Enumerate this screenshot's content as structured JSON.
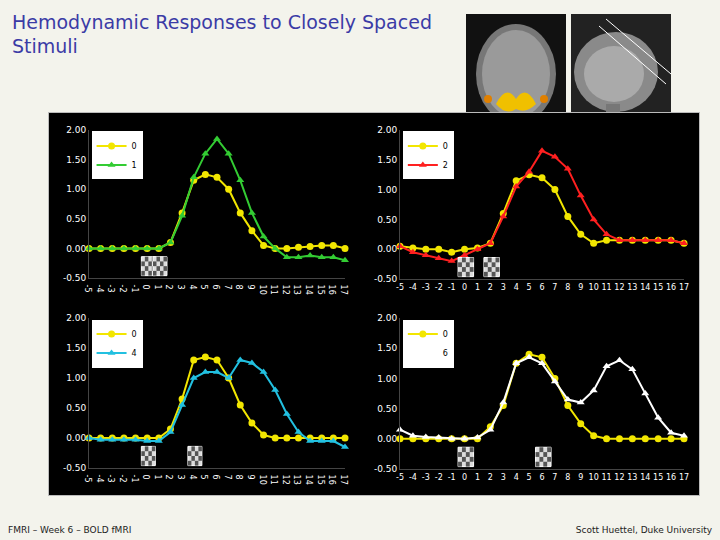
{
  "slide": {
    "title": "Hemodynamic Responses to Closely Spaced Stimuli",
    "footer_left": "FMRI – Week 6 – BOLD fMRI",
    "footer_right": "Scott Huettel, Duke University"
  },
  "chart_data": [
    {
      "type": "line",
      "legend": "upper left",
      "grid": false,
      "x": [
        -5,
        -4,
        -3,
        -2,
        -1,
        0,
        1,
        2,
        3,
        4,
        5,
        6,
        7,
        8,
        9,
        10,
        11,
        12,
        13,
        14,
        15,
        16,
        17
      ],
      "xlim": [
        -5,
        17
      ],
      "xticks": [
        -5,
        -4,
        -3,
        -2,
        -1,
        0,
        1,
        2,
        3,
        4,
        5,
        6,
        7,
        8,
        9,
        10,
        11,
        12,
        13,
        14,
        15,
        16,
        17
      ],
      "ylim": [
        -0.5,
        2.0
      ],
      "yticks": [
        {
          "value": -0.5,
          "label": "-0.50"
        },
        {
          "value": 0,
          "label": "0.00"
        },
        {
          "value": 0.5,
          "label": "0.50"
        },
        {
          "value": 1.0,
          "label": "1.00"
        },
        {
          "value": 1.5,
          "label": "1.50"
        },
        {
          "value": 2.0,
          "label": "2.00"
        }
      ],
      "stimulus_onsets": [
        0,
        1
      ],
      "series": [
        {
          "name": "0",
          "color": "#f2e600",
          "marker": "circle",
          "values": [
            0,
            0,
            0,
            0,
            0,
            0,
            0,
            0.1,
            0.6,
            1.15,
            1.25,
            1.2,
            1.0,
            0.6,
            0.3,
            0.05,
            0,
            0,
            0.02,
            0.03,
            0.05,
            0.05,
            0
          ]
        },
        {
          "name": "1",
          "color": "#33cc33",
          "marker": "triangle",
          "values": [
            0,
            0,
            0,
            0,
            0,
            0,
            0,
            0.1,
            0.55,
            1.2,
            1.6,
            1.85,
            1.6,
            1.15,
            0.6,
            0.2,
            0,
            -0.15,
            -0.15,
            -0.12,
            -0.15,
            -0.15,
            -0.2
          ]
        }
      ]
    },
    {
      "type": "line",
      "legend": "upper left",
      "grid": false,
      "x": [
        -5,
        -4,
        -3,
        -2,
        -1,
        0,
        1,
        2,
        3,
        4,
        5,
        6,
        7,
        8,
        9,
        10,
        11,
        12,
        13,
        14,
        15,
        16,
        17
      ],
      "xlim": [
        -5,
        17
      ],
      "xticks": [
        -5,
        -4,
        -3,
        -2,
        -1,
        0,
        1,
        2,
        3,
        4,
        5,
        6,
        7,
        8,
        9,
        10,
        11,
        12,
        13,
        14,
        15,
        16,
        17
      ],
      "ylim": [
        -0.5,
        2.0
      ],
      "yticks": [
        {
          "value": -0.5,
          "label": "-0.50"
        },
        {
          "value": 0,
          "label": "0.00"
        },
        {
          "value": 0.5,
          "label": "0.50"
        },
        {
          "value": 1.0,
          "label": "1.00"
        },
        {
          "value": 1.5,
          "label": "1.50"
        },
        {
          "value": 2.0,
          "label": "2.00"
        }
      ],
      "stimulus_onsets": [
        0,
        2
      ],
      "series": [
        {
          "name": "0",
          "color": "#f2e600",
          "marker": "circle",
          "values": [
            0.05,
            0.02,
            0,
            0,
            -0.05,
            0,
            0.02,
            0.1,
            0.6,
            1.15,
            1.25,
            1.2,
            1.0,
            0.55,
            0.25,
            0.1,
            0.15,
            0.15,
            0.15,
            0.15,
            0.15,
            0.15,
            0.1
          ]
        },
        {
          "name": "2",
          "color": "#ff2020",
          "marker": "triangle",
          "values": [
            0.05,
            -0.05,
            -0.1,
            -0.15,
            -0.2,
            -0.1,
            0,
            0.1,
            0.55,
            1.05,
            1.3,
            1.65,
            1.55,
            1.35,
            0.9,
            0.5,
            0.25,
            0.15,
            0.15,
            0.15,
            0.15,
            0.15,
            0.1
          ]
        }
      ]
    },
    {
      "type": "line",
      "legend": "upper left",
      "grid": false,
      "x": [
        -5,
        -4,
        -3,
        -2,
        -1,
        0,
        1,
        2,
        3,
        4,
        5,
        6,
        7,
        8,
        9,
        10,
        11,
        12,
        13,
        14,
        15,
        16,
        17
      ],
      "xlim": [
        -5,
        17
      ],
      "xticks": [
        -5,
        -4,
        -3,
        -2,
        -1,
        0,
        1,
        2,
        3,
        4,
        5,
        6,
        7,
        8,
        9,
        10,
        11,
        12,
        13,
        14,
        15,
        16,
        17
      ],
      "ylim": [
        -0.5,
        2.0
      ],
      "yticks": [
        {
          "value": -0.5,
          "label": "-0.50"
        },
        {
          "value": 0,
          "label": "0.00"
        },
        {
          "value": 0.5,
          "label": "0.50"
        },
        {
          "value": 1.0,
          "label": "1.00"
        },
        {
          "value": 1.5,
          "label": "1.50"
        },
        {
          "value": 2.0,
          "label": "2.00"
        }
      ],
      "stimulus_onsets": [
        0,
        4
      ],
      "series": [
        {
          "name": "0",
          "color": "#f2e600",
          "marker": "circle",
          "values": [
            0,
            0,
            0,
            0,
            0,
            0,
            0,
            0.15,
            0.65,
            1.3,
            1.35,
            1.3,
            1.0,
            0.55,
            0.25,
            0.05,
            0,
            0,
            0,
            0,
            0,
            0,
            0
          ]
        },
        {
          "name": "4",
          "color": "#22c0e0",
          "marker": "triangle",
          "values": [
            0,
            -0.03,
            -0.03,
            -0.03,
            -0.03,
            -0.05,
            -0.05,
            0.1,
            0.55,
            1.0,
            1.1,
            1.1,
            1.0,
            1.3,
            1.25,
            1.1,
            0.8,
            0.4,
            0.1,
            -0.05,
            -0.05,
            -0.05,
            -0.15
          ]
        }
      ]
    },
    {
      "type": "line",
      "legend": "upper left",
      "grid": false,
      "x": [
        -5,
        -4,
        -3,
        -2,
        -1,
        0,
        1,
        2,
        3,
        4,
        5,
        6,
        7,
        8,
        9,
        10,
        11,
        12,
        13,
        14,
        15,
        16,
        17
      ],
      "xlim": [
        -5,
        17
      ],
      "xticks": [
        -5,
        -4,
        -3,
        -2,
        -1,
        0,
        1,
        2,
        3,
        4,
        5,
        6,
        7,
        8,
        9,
        10,
        11,
        12,
        13,
        14,
        15,
        16,
        17
      ],
      "ylim": [
        -0.5,
        2.0
      ],
      "yticks": [
        {
          "value": -0.5,
          "label": "-0.50"
        },
        {
          "value": 0,
          "label": "0.00"
        },
        {
          "value": 0.5,
          "label": "0.50"
        },
        {
          "value": 1.0,
          "label": "1.00"
        },
        {
          "value": 1.5,
          "label": "1.50"
        },
        {
          "value": 2.0,
          "label": "2.00"
        }
      ],
      "stimulus_onsets": [
        0,
        6
      ],
      "series": [
        {
          "name": "0",
          "color": "#f2e600",
          "marker": "circle",
          "values": [
            0,
            0,
            0,
            0,
            0,
            0,
            0,
            0.2,
            0.55,
            1.25,
            1.4,
            1.35,
            1.0,
            0.55,
            0.25,
            0.05,
            0,
            0,
            0,
            0,
            0,
            0,
            0
          ]
        },
        {
          "name": "6",
          "color": "#ffffff",
          "marker": "triangle",
          "values": [
            0.15,
            0.05,
            0.03,
            0.02,
            0,
            0,
            0.02,
            0.15,
            0.6,
            1.25,
            1.35,
            1.25,
            0.95,
            0.65,
            0.6,
            0.8,
            1.2,
            1.3,
            1.15,
            0.75,
            0.35,
            0.1,
            0.05
          ]
        }
      ]
    }
  ]
}
